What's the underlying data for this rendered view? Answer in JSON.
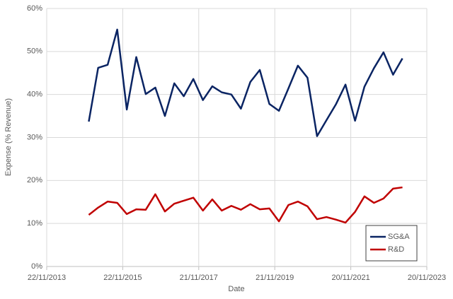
{
  "chart_data": {
    "type": "line",
    "x_label": "Date",
    "y_label": "Expense (% Revenue)",
    "x": [
      "2014-12-31",
      "2015-03-31",
      "2015-06-30",
      "2015-09-30",
      "2015-12-31",
      "2016-03-31",
      "2016-06-30",
      "2016-09-30",
      "2016-12-31",
      "2017-03-31",
      "2017-06-30",
      "2017-09-30",
      "2017-12-31",
      "2018-03-31",
      "2018-06-30",
      "2018-09-30",
      "2018-12-31",
      "2019-03-31",
      "2019-06-30",
      "2019-09-30",
      "2019-12-31",
      "2020-03-31",
      "2020-06-30",
      "2020-09-30",
      "2020-12-31",
      "2021-03-31",
      "2021-06-30",
      "2021-09-30",
      "2021-12-31",
      "2022-03-31",
      "2022-06-30",
      "2022-09-30",
      "2022-12-31",
      "2023-03-31"
    ],
    "series": [
      {
        "name": "SG&A",
        "color": "#0a2463",
        "values": [
          33.7,
          46.2,
          46.9,
          55.1,
          36.5,
          48.7,
          40.1,
          41.6,
          35.0,
          42.6,
          39.6,
          43.6,
          38.7,
          41.9,
          40.5,
          40.0,
          36.7,
          42.9,
          45.7,
          37.8,
          36.2,
          41.4,
          46.7,
          43.9,
          30.3,
          34.0,
          37.7,
          42.3,
          33.9,
          41.8,
          46.1,
          49.8,
          44.6,
          48.4
        ]
      },
      {
        "name": "R&D",
        "color": "#c00000",
        "values": [
          12.0,
          13.7,
          15.1,
          14.8,
          12.2,
          13.3,
          13.2,
          16.8,
          12.8,
          14.6,
          15.3,
          16.0,
          13.0,
          15.6,
          13.0,
          14.1,
          13.2,
          14.5,
          13.3,
          13.5,
          10.5,
          14.3,
          15.1,
          14.0,
          11.0,
          11.5,
          10.9,
          10.2,
          12.7,
          16.3,
          14.8,
          15.8,
          18.1,
          18.4
        ]
      }
    ],
    "xlim": [
      "2013-11-22",
      "2023-11-20"
    ],
    "xticks": [
      {
        "value": "2013-11-22",
        "label": "22/11/2013"
      },
      {
        "value": "2015-11-22",
        "label": "22/11/2015"
      },
      {
        "value": "2017-11-21",
        "label": "21/11/2017"
      },
      {
        "value": "2019-11-21",
        "label": "21/11/2019"
      },
      {
        "value": "2021-11-20",
        "label": "20/11/2021"
      },
      {
        "value": "2023-11-20",
        "label": "20/11/2023"
      }
    ],
    "ylim": [
      0,
      60
    ],
    "yticks": [
      {
        "value": 0,
        "label": "0%"
      },
      {
        "value": 10,
        "label": "10%"
      },
      {
        "value": 20,
        "label": "20%"
      },
      {
        "value": 30,
        "label": "30%"
      },
      {
        "value": 40,
        "label": "40%"
      },
      {
        "value": 50,
        "label": "50%"
      },
      {
        "value": 60,
        "label": "60%"
      }
    ],
    "grid": true,
    "legend": "lower right"
  }
}
